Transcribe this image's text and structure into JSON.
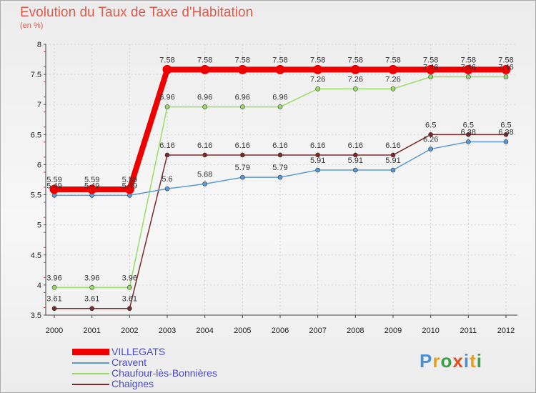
{
  "chart_data": {
    "type": "line",
    "title": "Evolution du Taux de Taxe d'Habitation",
    "ylabel": "(en %)",
    "xlabel": "",
    "ylim": [
      3.5,
      8
    ],
    "yticks": [
      "3.5",
      "4",
      "4.5",
      "5",
      "5.5",
      "6",
      "6.5",
      "7",
      "7.5",
      "8"
    ],
    "categories": [
      "2000",
      "2001",
      "2002",
      "2003",
      "2004",
      "2005",
      "2006",
      "2007",
      "2008",
      "2009",
      "2010",
      "2011",
      "2012"
    ],
    "series": [
      {
        "name": "Chaignes",
        "color": "#7a2a2a",
        "values": [
          3.61,
          3.61,
          3.61,
          6.16,
          6.16,
          6.16,
          6.16,
          6.16,
          6.16,
          6.16,
          6.5,
          6.5,
          6.5
        ],
        "labels": [
          "3.61",
          "3.61",
          "3.61",
          "6.16",
          "6.16",
          "6.16",
          "6.16",
          "6.16",
          "6.16",
          "6.16",
          "6.5",
          "6.5",
          "6.5"
        ]
      },
      {
        "name": "Chaufour-lès-Bonnières",
        "color": "#99dd66",
        "values": [
          3.96,
          3.96,
          3.96,
          6.96,
          6.96,
          6.96,
          6.96,
          7.26,
          7.26,
          7.26,
          7.46,
          7.46,
          7.46
        ],
        "labels": [
          "3.96",
          "3.96",
          "3.96",
          "6.96",
          "6.96",
          "6.96",
          "6.96",
          "7.26",
          "7.26",
          "7.26",
          "7.46",
          "7.46",
          "7.46"
        ]
      },
      {
        "name": "Cravent",
        "color": "#5b9bd5",
        "values": [
          5.49,
          5.49,
          5.49,
          5.6,
          5.68,
          5.79,
          5.79,
          5.91,
          5.91,
          5.91,
          6.26,
          6.38,
          6.38
        ],
        "labels": [
          "5.49",
          "5.49",
          "5.49",
          "5.6",
          "5.68",
          "5.79",
          "5.79",
          "5.91",
          "5.91",
          "5.91",
          "6.26",
          "6.38",
          "6.38"
        ]
      },
      {
        "name": "VILLEGATS",
        "color": "#ee0000",
        "values": [
          5.59,
          5.59,
          5.59,
          7.58,
          7.58,
          7.58,
          7.58,
          7.58,
          7.58,
          7.58,
          7.58,
          7.58,
          7.58
        ],
        "labels": [
          "5.59",
          "5.59",
          "5.59",
          "7.58",
          "7.58",
          "7.58",
          "7.58",
          "7.58",
          "7.58",
          "7.58",
          "7.58",
          "7.58",
          "7.58"
        ]
      }
    ],
    "legend": [
      {
        "name": "VILLEGATS",
        "color": "#ee0000"
      },
      {
        "name": "Cravent",
        "color": "#5b9bd5"
      },
      {
        "name": "Chaufour-lès-Bonnières",
        "color": "#99dd66"
      },
      {
        "name": "Chaignes",
        "color": "#7a2a2a"
      }
    ]
  },
  "brand": {
    "letters": [
      "P",
      "r",
      "o",
      "x",
      "i",
      "t",
      "i"
    ],
    "colors": [
      "#4a8ed8",
      "#e8a020",
      "#3aa04a",
      "#e05020",
      "#4a8ed8",
      "#e8a020",
      "#3aa04a"
    ]
  }
}
